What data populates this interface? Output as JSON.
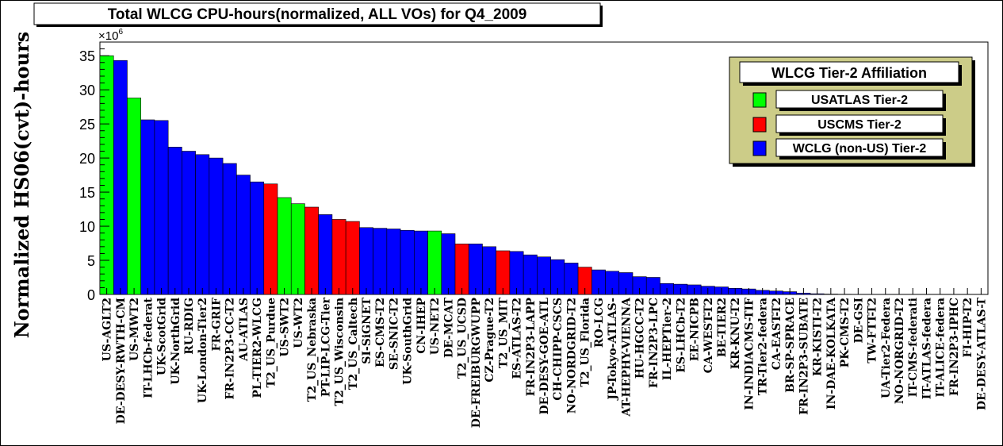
{
  "chart_data": {
    "type": "bar",
    "title": "Total WLCG CPU-hours(normalized, ALL VOs) for Q4_2009",
    "ylabel": "Normalized HS06(cvt)-hours",
    "y_exponent_base": "×10",
    "y_exponent_power": "6",
    "ylim": [
      0,
      37
    ],
    "yticks": [
      0,
      5,
      10,
      15,
      20,
      25,
      30,
      35
    ],
    "legend": {
      "title": "WLCG Tier-2 Affiliation",
      "placement": "top-right",
      "entries": [
        {
          "name": "USATLAS Tier-2",
          "color": "#00ff00"
        },
        {
          "name": "USCMS Tier-2",
          "color": "#ff0000"
        },
        {
          "name": "WCLG (non-US) Tier-2",
          "color": "#0000ff"
        }
      ]
    },
    "colors": {
      "atlas": "#00ff00",
      "cms": "#ff0000",
      "wlcg": "#0000ff",
      "frame_fill": "#ffffff",
      "legend_fill": "#cccc88"
    },
    "categories": [
      "US-AGLT2",
      "DE-DESY-RWTH-CM",
      "US-MWT2",
      "IT-LHCb-federat",
      "UK-ScotGrid",
      "UK-NorthGrid",
      "RU-RDIG",
      "UK-London-Tier2",
      "FR-GRIF",
      "FR-IN2P3-CC-T2",
      "AU-ATLAS",
      "PL-TIER2-WLCG",
      "T2_US_Purdue",
      "US-SWT2",
      "US-WT2",
      "T2_US_Nebraska",
      "PT-LIP-LCG-Tier",
      "T2_US_Wisconsin",
      "T2_US_Caltech",
      "SI-SiGNET",
      "ES-CMS-T2",
      "SE-SNIC-T2",
      "UK-SouthGrid",
      "CN-IHEP",
      "US-NET2",
      "DE-MCAT",
      "T2_US_UCSD",
      "DE-FREIBURGWUPP",
      "CZ-Prague-T2",
      "T2_US_MIT",
      "ES-ATLAS-T2",
      "FR-IN2P3-LAPP",
      "DE-DESY-GOE-ATL",
      "CH-CHIPP-CSCS",
      "NO-NORDGRID-T2",
      "T2_US_Florida",
      "RO-LCG",
      "JP-Tokyo-ATLAS-",
      "AT-HEPHY-VIENNA",
      "HU-HGCC-T2",
      "FR-IN2P3-LPC",
      "IL-HEPTier-2",
      "ES-LHCb-T2",
      "EE-NICPB",
      "CA-WEST-T2",
      "BE-TIER2",
      "KR-KNU-T2",
      "IN-INDIACMS-TIF",
      "TR-Tier2-federa",
      "CA-EAST-T2",
      "BR-SP-SPRACE",
      "FR-IN2P3-SUBATE",
      "KR-KISTI-T2",
      "IN-DAE-KOLKATA",
      "PK-CMS-T2",
      "DE-GSI",
      "TW-FTT-T2",
      "UA-Tier2-Federa",
      "NO-NORGRID-T2",
      "IT-CMS-federati",
      "IT-ATLAS-federa",
      "IT-ALICE-federa",
      "FR-IN2P3-IPHC",
      "FI-HIP-T2",
      "DE-DESY-ATLAS-T"
    ],
    "affiliation": [
      "atlas",
      "wlcg",
      "atlas",
      "wlcg",
      "wlcg",
      "wlcg",
      "wlcg",
      "wlcg",
      "wlcg",
      "wlcg",
      "wlcg",
      "wlcg",
      "cms",
      "atlas",
      "atlas",
      "cms",
      "wlcg",
      "cms",
      "cms",
      "wlcg",
      "wlcg",
      "wlcg",
      "wlcg",
      "wlcg",
      "atlas",
      "wlcg",
      "cms",
      "wlcg",
      "wlcg",
      "cms",
      "wlcg",
      "wlcg",
      "wlcg",
      "wlcg",
      "wlcg",
      "cms",
      "wlcg",
      "wlcg",
      "wlcg",
      "wlcg",
      "wlcg",
      "wlcg",
      "wlcg",
      "wlcg",
      "wlcg",
      "wlcg",
      "wlcg",
      "wlcg",
      "wlcg",
      "wlcg",
      "wlcg",
      "wlcg",
      "wlcg",
      "wlcg",
      "wlcg",
      "wlcg",
      "wlcg",
      "wlcg",
      "wlcg",
      "wlcg",
      "wlcg",
      "wlcg",
      "wlcg",
      "wlcg",
      "wlcg"
    ],
    "values": [
      35.0,
      34.3,
      28.8,
      25.6,
      25.5,
      21.6,
      21.0,
      20.5,
      20.0,
      19.2,
      17.5,
      16.5,
      16.2,
      14.2,
      13.3,
      12.8,
      11.7,
      11.0,
      10.7,
      9.8,
      9.7,
      9.6,
      9.4,
      9.3,
      9.3,
      8.9,
      7.4,
      7.4,
      7.0,
      6.4,
      6.3,
      5.8,
      5.5,
      5.1,
      4.6,
      4.0,
      3.6,
      3.4,
      3.2,
      2.6,
      2.5,
      1.6,
      1.5,
      1.4,
      1.2,
      1.1,
      0.9,
      0.8,
      0.6,
      0.5,
      0.4,
      0.2,
      0.1,
      0.05,
      0.03,
      0.02,
      0.01,
      0.01,
      0.0,
      0.0,
      0.0,
      0.0,
      0.0,
      0.0,
      0.0
    ]
  }
}
